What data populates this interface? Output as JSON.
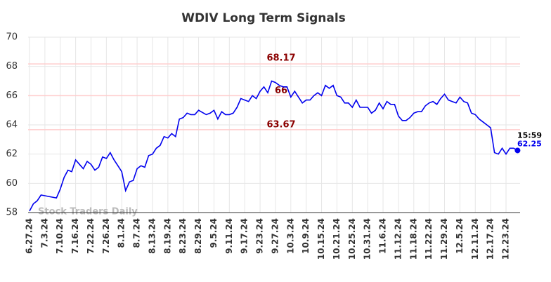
{
  "chart_data": {
    "type": "line",
    "title": "WDIV Long Term Signals",
    "categories": [
      "6.27.24",
      null,
      null,
      null,
      "7.3.24",
      null,
      null,
      null,
      "7.10.24",
      null,
      null,
      null,
      "7.16.24",
      null,
      null,
      null,
      "7.22.24",
      null,
      null,
      null,
      "7.26.24",
      null,
      null,
      null,
      "8.1.24",
      null,
      null,
      null,
      "8.7.24",
      null,
      null,
      null,
      "8.13.24",
      null,
      null,
      null,
      "8.19.24",
      null,
      null,
      null,
      "8.23.24",
      null,
      null,
      null,
      "8.29.24",
      null,
      null,
      null,
      "9.5.24",
      null,
      null,
      null,
      "9.11.24",
      null,
      null,
      null,
      "9.17.24",
      null,
      null,
      null,
      "9.23.24",
      null,
      null,
      null,
      "9.27.24",
      null,
      null,
      null,
      "10.3.24",
      null,
      null,
      null,
      "10.9.24",
      null,
      null,
      null,
      "10.15.24",
      null,
      null,
      null,
      "10.21.24",
      null,
      null,
      null,
      "10.25.24",
      null,
      null,
      null,
      "10.31.24",
      null,
      null,
      null,
      "11.6.24",
      null,
      null,
      null,
      "11.12.24",
      null,
      null,
      null,
      "11.18.24",
      null,
      null,
      null,
      "11.22.24",
      null,
      null,
      null,
      "11.29.24",
      null,
      null,
      null,
      "12.5.24",
      null,
      null,
      null,
      "12.11.24",
      null,
      null,
      null,
      "12.17.24",
      null,
      null,
      null,
      "12.23.24",
      null,
      null,
      null
    ],
    "series": [
      {
        "color": "#0000ee",
        "values": [
          58.1,
          58.6,
          58.8,
          59.2,
          59.15,
          59.1,
          59.05,
          59.0,
          59.6,
          60.4,
          60.9,
          60.8,
          61.6,
          61.3,
          61.0,
          61.5,
          61.3,
          60.9,
          61.1,
          61.8,
          61.7,
          62.1,
          61.6,
          61.2,
          60.8,
          59.5,
          60.1,
          60.2,
          61.0,
          61.2,
          61.1,
          61.9,
          62.0,
          62.4,
          62.6,
          63.2,
          63.1,
          63.4,
          63.2,
          64.4,
          64.5,
          64.8,
          64.7,
          64.7,
          65.0,
          64.85,
          64.7,
          64.8,
          65.0,
          64.4,
          64.9,
          64.7,
          64.7,
          64.8,
          65.2,
          65.8,
          65.7,
          65.6,
          66.0,
          65.8,
          66.3,
          66.6,
          66.2,
          67.0,
          66.9,
          66.7,
          66.6,
          66.6,
          65.9,
          66.3,
          65.9,
          65.5,
          65.7,
          65.7,
          66.0,
          66.2,
          66.0,
          66.7,
          66.5,
          66.7,
          66.0,
          65.9,
          65.5,
          65.5,
          65.2,
          65.7,
          65.2,
          65.2,
          65.2,
          64.8,
          65.0,
          65.5,
          65.1,
          65.6,
          65.4,
          65.4,
          64.6,
          64.3,
          64.3,
          64.5,
          64.8,
          64.9,
          64.9,
          65.3,
          65.5,
          65.6,
          65.4,
          65.8,
          66.1,
          65.7,
          65.6,
          65.5,
          65.9,
          65.6,
          65.5,
          64.8,
          64.7,
          64.4,
          64.2,
          64.0,
          63.8,
          62.1,
          62.0,
          62.4,
          62.0,
          62.4,
          62.4,
          62.25
        ]
      }
    ],
    "ylim": [
      58,
      70
    ],
    "yticks": [
      58,
      60,
      62,
      64,
      66,
      68,
      70
    ],
    "grid": true,
    "hlines": [
      {
        "value": 68.17,
        "color": "#ffcccc",
        "label_color": "#8b0000"
      },
      {
        "value": 66,
        "color": "#ffcccc",
        "label_color": "#8b0000"
      },
      {
        "value": 63.67,
        "color": "#ffcccc",
        "label_color": "#8b0000"
      }
    ],
    "last_time": "15:59",
    "watermark": "Stock Traders Daily"
  }
}
